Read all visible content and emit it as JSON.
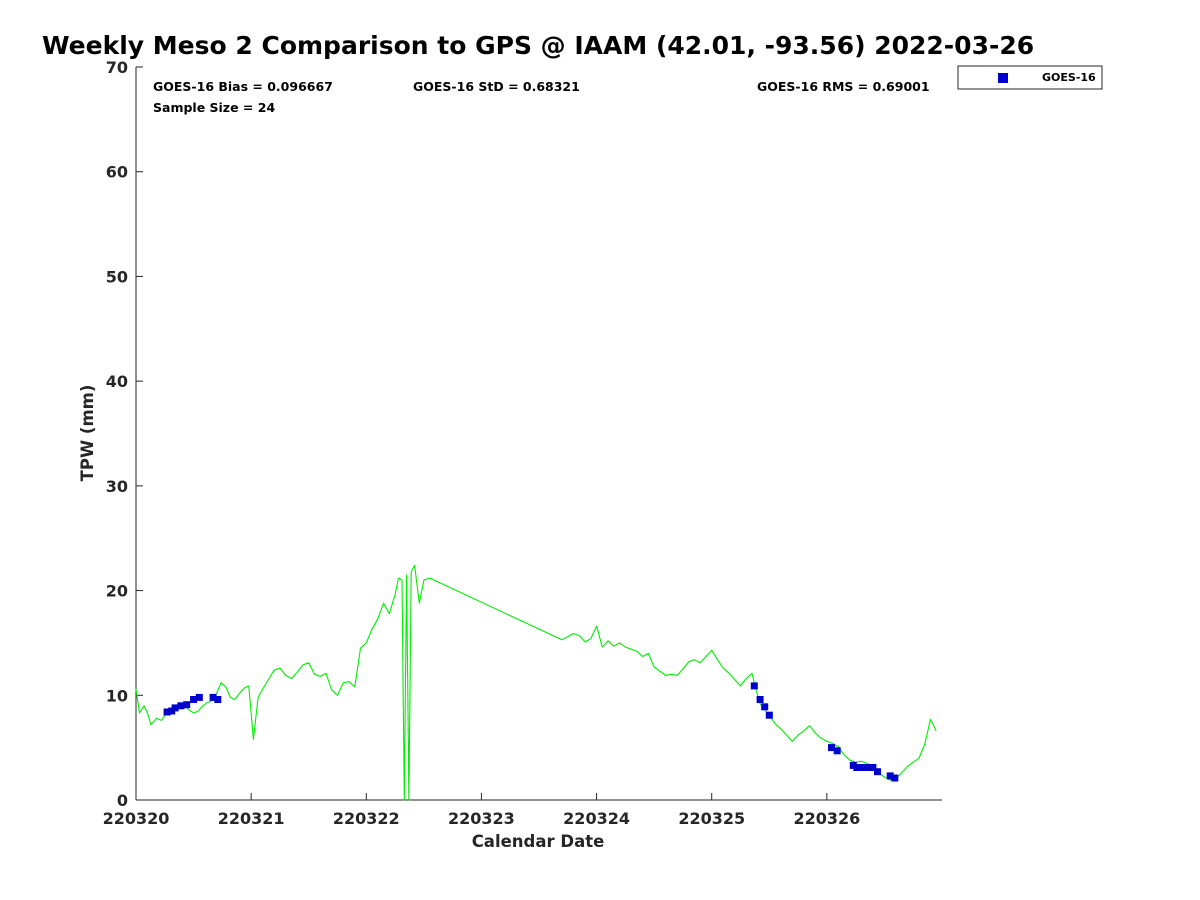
{
  "chart_data": {
    "type": "scatter",
    "title": "Weekly Meso 2 Comparison to GPS @ IAAM (42.01, -93.56) 2022-03-26",
    "xlabel": "Calendar Date",
    "ylabel": "TPW (mm)",
    "xlim": [
      220320,
      220327
    ],
    "ylim": [
      0,
      70
    ],
    "x_tick_labels": [
      "220320",
      "220321",
      "220322",
      "220323",
      "220324",
      "220325",
      "220326"
    ],
    "y_tick_labels": [
      "0",
      "10",
      "20",
      "30",
      "40",
      "50",
      "60",
      "70"
    ],
    "grid": false,
    "legend_position": "top-right",
    "stats": {
      "bias": "GOES-16 Bias = 0.096667",
      "std": "GOES-16 StD = 0.68321",
      "rms": "GOES-16 RMS = 0.69001",
      "sample_size": "Sample Size = 24"
    },
    "series": [
      {
        "name": "GOES-16",
        "kind": "scatter",
        "color": "#0000cc",
        "marker": "square",
        "x": [
          220320.27,
          220320.31,
          220320.34,
          220320.39,
          220320.44,
          220320.5,
          220320.55,
          220320.67,
          220320.71,
          220325.37,
          220325.42,
          220325.46,
          220325.5,
          220326.04,
          220326.09,
          220326.23,
          220326.26,
          220326.3,
          220326.33,
          220326.37,
          220326.4,
          220326.44,
          220326.55,
          220326.59
        ],
        "y": [
          8.4,
          8.5,
          8.8,
          9.0,
          9.1,
          9.6,
          9.8,
          9.8,
          9.6,
          10.9,
          9.6,
          8.9,
          8.1,
          5.0,
          4.7,
          3.3,
          3.1,
          3.1,
          3.1,
          3.1,
          3.1,
          2.7,
          2.3,
          2.1
        ]
      },
      {
        "kind": "line",
        "color": "#00ee00",
        "x": [
          220320.0,
          220320.03,
          220320.07,
          220320.1,
          220320.13,
          220320.18,
          220320.22,
          220320.26,
          220320.3,
          220320.34,
          220320.38,
          220320.42,
          220320.46,
          220320.5,
          220320.54,
          220320.58,
          220320.62,
          220320.66,
          220320.7,
          220320.74,
          220320.78,
          220320.82,
          220320.86,
          220320.9,
          220320.94,
          220320.98,
          220321.02,
          220321.06,
          220321.1,
          220321.15,
          220321.2,
          220321.25,
          220321.3,
          220321.35,
          220321.4,
          220321.45,
          220321.5,
          220321.55,
          220321.6,
          220321.65,
          220321.7,
          220321.75,
          220321.8,
          220321.85,
          220321.9,
          220321.95,
          220322.0,
          220322.05,
          220322.1,
          220322.15,
          220322.2,
          220322.25,
          220322.28,
          220322.31,
          220322.33,
          220322.35,
          220322.37,
          220322.39,
          220322.42,
          220322.46,
          220322.5,
          220322.55,
          220323.7,
          220323.8,
          220323.85,
          220323.9,
          220323.95,
          220324.0,
          220324.05,
          220324.1,
          220324.15,
          220324.2,
          220324.25,
          220324.3,
          220324.35,
          220324.4,
          220324.45,
          220324.5,
          220324.55,
          220324.6,
          220324.65,
          220324.7,
          220324.75,
          220324.8,
          220324.85,
          220324.9,
          220324.95,
          220325.0,
          220325.05,
          220325.1,
          220325.15,
          220325.2,
          220325.25,
          220325.3,
          220325.35,
          220325.38,
          220325.42,
          220325.46,
          220325.5,
          220325.55,
          220325.6,
          220325.65,
          220325.7,
          220325.75,
          220325.8,
          220325.85,
          220325.9,
          220325.95,
          220326.0,
          220326.05,
          220326.1,
          220326.15,
          220326.2,
          220326.25,
          220326.3,
          220326.35,
          220326.4,
          220326.45,
          220326.5,
          220326.55,
          220326.6,
          220326.65,
          220326.7,
          220326.75,
          220326.8,
          220326.85,
          220326.9,
          220326.95
        ],
        "y": [
          10.6,
          8.3,
          9.0,
          8.3,
          7.2,
          7.8,
          7.6,
          8.2,
          8.6,
          8.9,
          9.2,
          9.0,
          8.6,
          8.3,
          8.5,
          9.0,
          9.3,
          9.5,
          10.2,
          11.2,
          10.8,
          9.8,
          9.6,
          10.2,
          10.7,
          10.9,
          5.8,
          9.8,
          10.6,
          11.5,
          12.4,
          12.6,
          11.9,
          11.6,
          12.2,
          12.9,
          13.1,
          12.0,
          11.8,
          12.1,
          10.5,
          10.0,
          11.2,
          11.3,
          10.8,
          14.5,
          15.0,
          16.3,
          17.3,
          18.8,
          17.8,
          19.6,
          21.2,
          21.0,
          0.0,
          21.5,
          0.0,
          21.8,
          22.4,
          18.8,
          21.0,
          21.2,
          15.3,
          15.9,
          15.7,
          15.1,
          15.4,
          16.6,
          14.6,
          15.2,
          14.7,
          15.0,
          14.6,
          14.4,
          14.2,
          13.7,
          14.0,
          12.7,
          12.3,
          11.9,
          12.0,
          11.9,
          12.5,
          13.2,
          13.4,
          13.1,
          13.7,
          14.3,
          13.4,
          12.6,
          12.1,
          11.5,
          10.9,
          11.6,
          12.1,
          10.7,
          9.2,
          8.6,
          8.1,
          7.3,
          6.8,
          6.2,
          5.6,
          6.2,
          6.6,
          7.1,
          6.4,
          5.9,
          5.6,
          5.4,
          5.1,
          4.3,
          3.8,
          3.6,
          3.7,
          3.5,
          3.1,
          2.6,
          2.2,
          1.9,
          2.0,
          2.6,
          3.2,
          3.6,
          4.0,
          5.3,
          7.7,
          6.6
        ]
      }
    ]
  }
}
